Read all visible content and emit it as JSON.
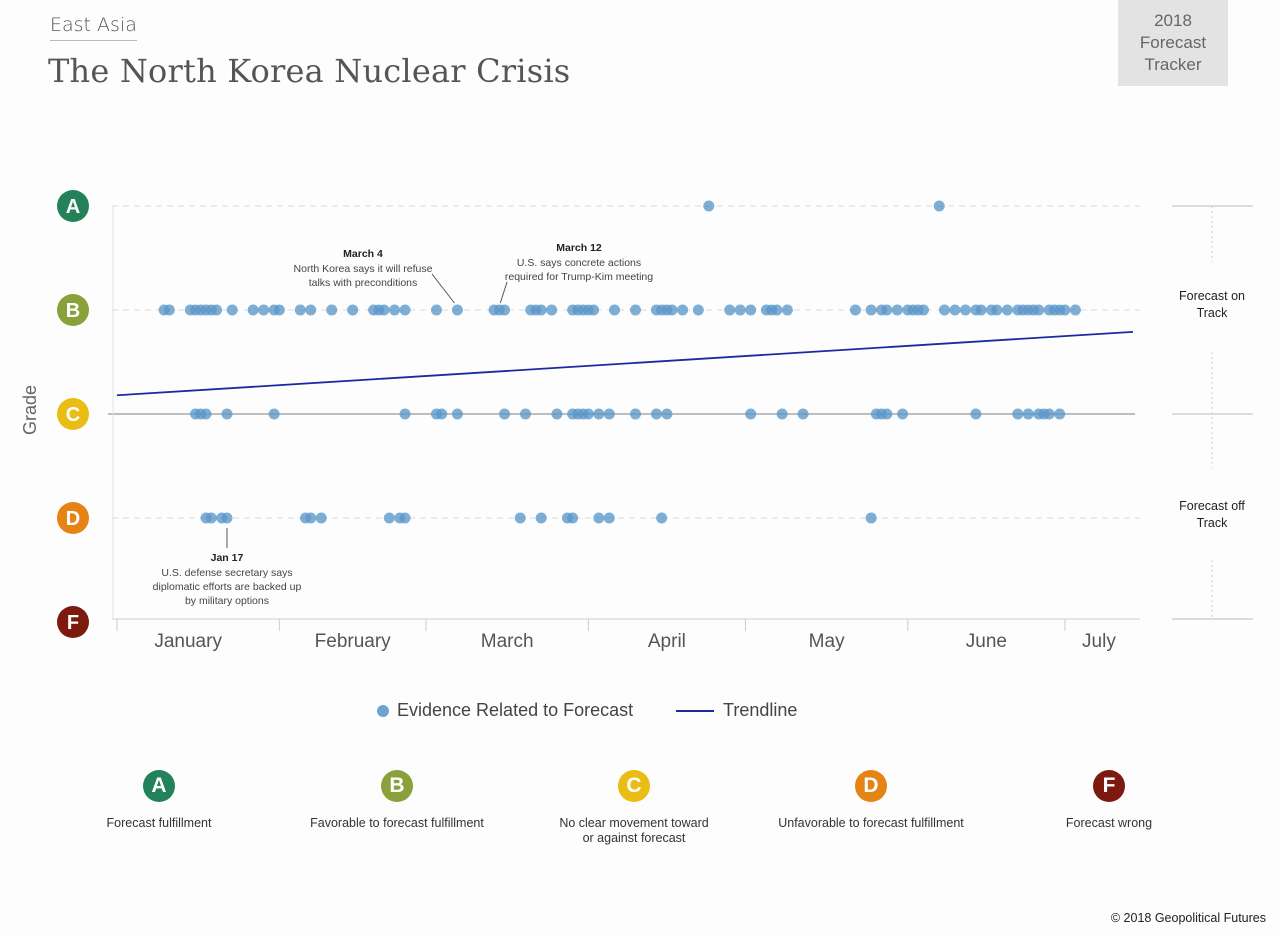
{
  "header": {
    "region": "East Asia",
    "title": "The North Korea Nuclear Crisis",
    "tracker": [
      "2018",
      "Forecast",
      "Tracker"
    ]
  },
  "chart_data": {
    "type": "scatter",
    "title": "The North Korea Nuclear Crisis",
    "ylabel": "Grade",
    "xlabel": "",
    "x_unit": "day of year 2018",
    "xlim": [
      1,
      195
    ],
    "grades": [
      {
        "letter": "A",
        "value": 4,
        "color": "#23825a"
      },
      {
        "letter": "B",
        "value": 3,
        "color": "#8aa13b"
      },
      {
        "letter": "C",
        "value": 2,
        "color": "#e9bd13"
      },
      {
        "letter": "D",
        "value": 1,
        "color": "#e58314"
      },
      {
        "letter": "F",
        "value": 0,
        "color": "#7d1a0f"
      }
    ],
    "months": [
      "January",
      "February",
      "March",
      "April",
      "May",
      "June",
      "July"
    ],
    "month_starts": [
      1,
      32,
      60,
      91,
      121,
      152,
      182
    ],
    "series": [
      {
        "name": "Evidence Related to Forecast",
        "color": "#5b97c9",
        "points": [
          {
            "grade": 4,
            "days": [
              114,
              158
            ]
          },
          {
            "grade": 3,
            "days": [
              10,
              11,
              15,
              16,
              17,
              18,
              19,
              20,
              23,
              27,
              29,
              31,
              32,
              36,
              38,
              42,
              46,
              50,
              51,
              52,
              54,
              56,
              62,
              66,
              73,
              74,
              75,
              80,
              81,
              82,
              84,
              88,
              89,
              90,
              91,
              92,
              96,
              100,
              104,
              105,
              106,
              107,
              109,
              112,
              118,
              120,
              122,
              125,
              126,
              127,
              129,
              142,
              145,
              147,
              148,
              150,
              152,
              153,
              154,
              155,
              159,
              161,
              163,
              165,
              166,
              168,
              169,
              171,
              173,
              174,
              175,
              176,
              177,
              179,
              180,
              181,
              182,
              184
            ]
          },
          {
            "grade": 2,
            "days": [
              16,
              17,
              18,
              22,
              31,
              56,
              62,
              63,
              66,
              75,
              79,
              85,
              88,
              89,
              90,
              91,
              93,
              95,
              100,
              104,
              106,
              122,
              128,
              132,
              146,
              147,
              148,
              151,
              165,
              173,
              175,
              177,
              178,
              179,
              181
            ]
          },
          {
            "grade": 1,
            "days": [
              18,
              19,
              21,
              22,
              37,
              38,
              40,
              53,
              55,
              56,
              78,
              82,
              87,
              88,
              93,
              95,
              105,
              145
            ]
          }
        ]
      }
    ],
    "trendline": {
      "name": "Trendline",
      "color": "#1a2aa0",
      "start": [
        1,
        2.18
      ],
      "end": [
        195,
        2.79
      ]
    },
    "annotations": [
      {
        "date": "Jan 17",
        "text": [
          "U.S. defense secretary says",
          "diplomatic efforts are backed up",
          "by military options"
        ],
        "day": 22,
        "grade": 1
      },
      {
        "date": "March 4",
        "text": [
          "North Korea says it will refuse",
          "talks with preconditions"
        ],
        "day": 66,
        "grade": 3
      },
      {
        "date": "March 12",
        "text": [
          "U.S. says concrete actions",
          "required for Trump-Kim meeting"
        ],
        "day": 74,
        "grade": 3
      }
    ],
    "side_labels": [
      "Forecast on Track",
      "Forecast off Track"
    ]
  },
  "side": {
    "on_track": [
      "Forecast on",
      "Track"
    ],
    "off_track": [
      "Forecast off",
      "Track"
    ]
  },
  "legend": {
    "evidence": "Evidence Related to Forecast",
    "trend": "Trendline"
  },
  "key": [
    {
      "letter": "A",
      "color": "#23825a",
      "label": [
        "Forecast fulfillment"
      ]
    },
    {
      "letter": "B",
      "color": "#8aa13b",
      "label": [
        "Favorable to forecast fulfillment"
      ]
    },
    {
      "letter": "C",
      "color": "#e9bd13",
      "label": [
        "No clear movement toward",
        "or against forecast"
      ]
    },
    {
      "letter": "D",
      "color": "#e58314",
      "label": [
        "Unfavorable to forecast fulfillment"
      ]
    },
    {
      "letter": "F",
      "color": "#7d1a0f",
      "label": [
        "Forecast wrong"
      ]
    }
  ],
  "footer": {
    "copyright": "© 2018 Geopolitical Futures"
  }
}
